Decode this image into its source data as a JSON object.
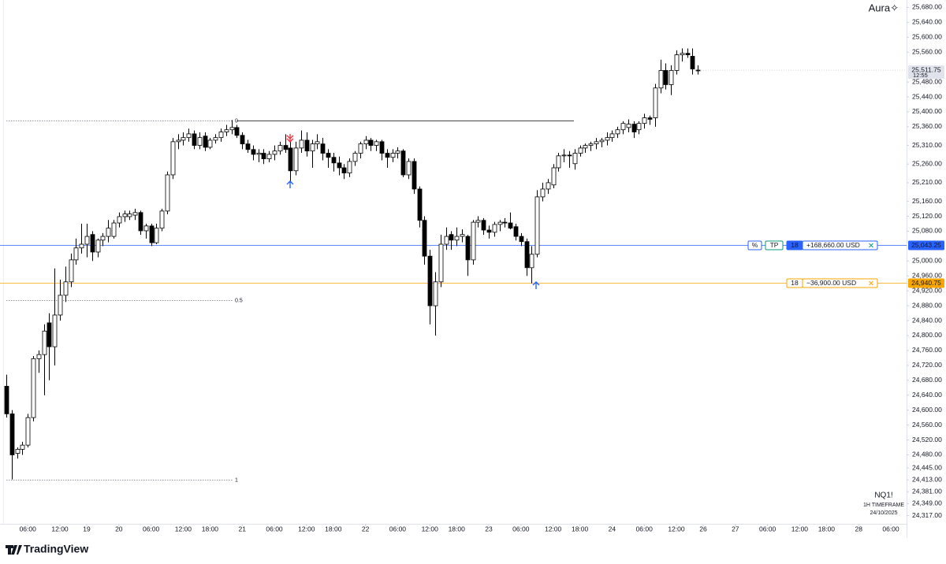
{
  "chart_data": {
    "type": "candlestick",
    "brand": "Aura✧",
    "symbol": "NQ1!",
    "timeframe": "1H TIMEFRAME",
    "date": "24/10/2025",
    "logo": "TradingView",
    "up_color": "#ffffff",
    "down_color": "#000000",
    "border_color": "#000000",
    "x": [
      0,
      1,
      2,
      3,
      4,
      5,
      6,
      7,
      8,
      9,
      10,
      11,
      12,
      13,
      14,
      15,
      16,
      17,
      18,
      19,
      20,
      21,
      22,
      23,
      24,
      25,
      26,
      27,
      28,
      29,
      30,
      31,
      32,
      33,
      34,
      35,
      36,
      37,
      38,
      39,
      40,
      41,
      42,
      43,
      44,
      45,
      46,
      47,
      48,
      49,
      50,
      51,
      52,
      53,
      54,
      55,
      56,
      57,
      58,
      59,
      60,
      61,
      62,
      63,
      64,
      65,
      66,
      67,
      68,
      69,
      70,
      71,
      72,
      73,
      74,
      75,
      76,
      77,
      78,
      79,
      80,
      81,
      82,
      83,
      84,
      85,
      86,
      87,
      88,
      89,
      90,
      91,
      92,
      93,
      94,
      95,
      96,
      97,
      98,
      99,
      100,
      101,
      102,
      103,
      104,
      105,
      106,
      107,
      108,
      109,
      110,
      111,
      112,
      113,
      114,
      115,
      116,
      117,
      118,
      119,
      120,
      121,
      122,
      123,
      124,
      125,
      126,
      127,
      128,
      129
    ],
    "open": [
      24664,
      24590,
      24484,
      24495,
      24506,
      24580,
      24738,
      24749,
      24834,
      24770,
      24855,
      24908,
      24944,
      25003,
      25035,
      25045,
      25071,
      25024,
      25056,
      25066,
      25066,
      25102,
      25119,
      25119,
      25123,
      25130,
      25081,
      25094,
      25049,
      25088,
      25134,
      25231,
      25320,
      25324,
      25331,
      25341,
      25310,
      25335,
      25305,
      25324,
      25331,
      25346,
      25352,
      25358,
      25337,
      25314,
      25299,
      25286,
      25289,
      25274,
      25286,
      25295,
      25310,
      25303,
      25242,
      25303,
      25324,
      25295,
      25314,
      25314,
      25289,
      25278,
      25263,
      25250,
      25236,
      25267,
      25289,
      25314,
      25324,
      25310,
      25320,
      25289,
      25278,
      25289,
      25295,
      25231,
      25267,
      25193,
      25109,
      25013,
      24880,
      24944,
      25045,
      25071,
      25056,
      25066,
      25066,
      25003,
      25104,
      25109,
      25083,
      25077,
      25098,
      25104,
      25102,
      25092,
      25066,
      25052,
      24982,
      25018,
      25172,
      25193,
      25204,
      25250,
      25282,
      25284,
      25261,
      25289,
      25303,
      25310,
      25314,
      25320,
      25324,
      25331,
      25341,
      25352,
      25358,
      25367,
      25352,
      25369,
      25384,
      25384,
      25464,
      25511,
      25473,
      25511,
      25553,
      25557,
      25549,
      25512
    ],
    "high": [
      24695,
      24600,
      24500,
      24515,
      24590,
      24745,
      24760,
      24830,
      24860,
      24980,
      24950,
      24985,
      25020,
      25060,
      25100,
      25100,
      25080,
      25060,
      25075,
      25110,
      25110,
      25130,
      25135,
      25135,
      25140,
      25135,
      25100,
      25100,
      25100,
      25140,
      25240,
      25330,
      25340,
      25345,
      25355,
      25350,
      25345,
      25345,
      25330,
      25340,
      25355,
      25365,
      25378,
      25365,
      25345,
      25325,
      25310,
      25300,
      25300,
      25295,
      25310,
      25320,
      25340,
      25320,
      25320,
      25350,
      25345,
      25325,
      25340,
      25330,
      25300,
      25290,
      25280,
      25260,
      25275,
      25295,
      25320,
      25335,
      25330,
      25325,
      25325,
      25300,
      25300,
      25305,
      25300,
      25275,
      25275,
      25200,
      25120,
      25030,
      24970,
      25070,
      25090,
      25080,
      25090,
      25085,
      25070,
      25110,
      25120,
      25115,
      25095,
      25105,
      25110,
      25115,
      25130,
      25100,
      25075,
      25060,
      25040,
      25190,
      25210,
      25220,
      25260,
      25290,
      25300,
      25295,
      25300,
      25310,
      25315,
      25320,
      25330,
      25330,
      25345,
      25350,
      25360,
      25375,
      25380,
      25375,
      25375,
      25395,
      25390,
      25475,
      25540,
      25530,
      25525,
      25565,
      25570,
      25570,
      25570,
      25525
    ],
    "low": [
      24580,
      24414,
      24470,
      24480,
      24500,
      24570,
      24700,
      24640,
      24680,
      24720,
      24840,
      24890,
      24930,
      24990,
      25020,
      25010,
      25000,
      25010,
      25040,
      25050,
      25060,
      25090,
      25105,
      25110,
      25110,
      25070,
      25060,
      25040,
      25045,
      25080,
      25125,
      25220,
      25300,
      25310,
      25320,
      25300,
      25300,
      25295,
      25300,
      25315,
      25320,
      25335,
      25340,
      25330,
      25300,
      25290,
      25270,
      25265,
      25260,
      25265,
      25270,
      25285,
      25290,
      25210,
      25230,
      25290,
      25280,
      25250,
      25300,
      25270,
      25250,
      25240,
      25230,
      25220,
      25225,
      25255,
      25275,
      25300,
      25295,
      25295,
      25270,
      25250,
      25265,
      25275,
      25225,
      25220,
      25180,
      25090,
      24990,
      24830,
      24800,
      24930,
      25030,
      25030,
      25040,
      25050,
      24960,
      24990,
      25090,
      25070,
      25060,
      25065,
      25080,
      25090,
      25085,
      25055,
      25040,
      24960,
      24940,
      25010,
      25160,
      25180,
      25195,
      25240,
      25265,
      25250,
      25245,
      25280,
      25290,
      25295,
      25300,
      25305,
      25310,
      25320,
      25330,
      25340,
      25345,
      25330,
      25340,
      25355,
      25365,
      25360,
      25450,
      25460,
      25445,
      25500,
      25535,
      25545,
      25500,
      25500
    ],
    "close": [
      24590,
      24480,
      24495,
      24506,
      24580,
      24738,
      24749,
      24812,
      24770,
      24855,
      24908,
      24944,
      25003,
      25035,
      25045,
      25066,
      25024,
      25056,
      25066,
      25088,
      25102,
      25119,
      25126,
      25126,
      25130,
      25081,
      25094,
      25049,
      25088,
      25134,
      25231,
      25320,
      25324,
      25331,
      25341,
      25310,
      25331,
      25305,
      25324,
      25331,
      25346,
      25352,
      25358,
      25337,
      25314,
      25299,
      25286,
      25289,
      25274,
      25286,
      25295,
      25310,
      25299,
      25242,
      25303,
      25324,
      25295,
      25314,
      25320,
      25289,
      25278,
      25263,
      25250,
      25236,
      25267,
      25289,
      25314,
      25324,
      25310,
      25320,
      25289,
      25278,
      25289,
      25295,
      25231,
      25267,
      25193,
      25109,
      25013,
      24880,
      24944,
      25045,
      25066,
      25056,
      25066,
      25071,
      25003,
      25104,
      25109,
      25083,
      25077,
      25098,
      25104,
      25102,
      25088,
      25066,
      25052,
      24982,
      25018,
      25172,
      25193,
      25210,
      25250,
      25282,
      25284,
      25282,
      25289,
      25303,
      25310,
      25314,
      25320,
      25324,
      25331,
      25341,
      25352,
      25369,
      25367,
      25346,
      25369,
      25384,
      25380,
      25464,
      25511,
      25473,
      25511,
      25553,
      25557,
      25553,
      25515,
      25511.75
    ],
    "xlim": [
      -1.18,
      167.94
    ],
    "ylim": [
      24295,
      25700
    ],
    "xticks": [
      {
        "value": 4,
        "label": "06:00"
      },
      {
        "value": 10,
        "label": "12:00"
      },
      {
        "value": 15,
        "label": "19"
      },
      {
        "value": 21,
        "label": "20"
      },
      {
        "value": 27,
        "label": "06:00"
      },
      {
        "value": 33,
        "label": "12:00"
      },
      {
        "value": 38,
        "label": "18:00"
      },
      {
        "value": 44,
        "label": "21"
      },
      {
        "value": 50,
        "label": "06:00"
      },
      {
        "value": 56,
        "label": "12:00"
      },
      {
        "value": 61,
        "label": "18:00"
      },
      {
        "value": 67,
        "label": "22"
      },
      {
        "value": 73,
        "label": "06:00"
      },
      {
        "value": 79,
        "label": "12:00"
      },
      {
        "value": 84,
        "label": "18:00"
      },
      {
        "value": 90,
        "label": "23"
      },
      {
        "value": 96,
        "label": "06:00"
      },
      {
        "value": 102,
        "label": "12:00"
      },
      {
        "value": 107,
        "label": "18:00"
      },
      {
        "value": 113,
        "label": "24"
      },
      {
        "value": 119,
        "label": "06:00"
      },
      {
        "value": 125,
        "label": "12:00"
      },
      {
        "value": 130,
        "label": "26"
      },
      {
        "value": 136,
        "label": "27"
      },
      {
        "value": 142,
        "label": "06:00"
      },
      {
        "value": 148,
        "label": "12:00"
      },
      {
        "value": 153,
        "label": "18:00"
      },
      {
        "value": 159,
        "label": "28"
      },
      {
        "value": 165,
        "label": "06:00"
      }
    ],
    "yticks": [
      {
        "value": 25680,
        "label": "25,680.00"
      },
      {
        "value": 25640,
        "label": "25,640.00"
      },
      {
        "value": 25600,
        "label": "25,600.00"
      },
      {
        "value": 25560,
        "label": "25,560.00"
      },
      {
        "value": 25480,
        "label": "25,480.00"
      },
      {
        "value": 25440,
        "label": "25,440.00"
      },
      {
        "value": 25400,
        "label": "25,400.00"
      },
      {
        "value": 25360,
        "label": "25,360.00"
      },
      {
        "value": 25310,
        "label": "25,310.00"
      },
      {
        "value": 25260,
        "label": "25,260.00"
      },
      {
        "value": 25210,
        "label": "25,210.00"
      },
      {
        "value": 25160,
        "label": "25,160.00"
      },
      {
        "value": 25120,
        "label": "25,120.00"
      },
      {
        "value": 25080,
        "label": "25,080.00"
      },
      {
        "value": 25000,
        "label": "25,000.00"
      },
      {
        "value": 24960,
        "label": "24,960.00"
      },
      {
        "value": 24920,
        "label": "24,920.00"
      },
      {
        "value": 24880,
        "label": "24,880.00"
      },
      {
        "value": 24840,
        "label": "24,840.00"
      },
      {
        "value": 24800,
        "label": "24,800.00"
      },
      {
        "value": 24760,
        "label": "24,760.00"
      },
      {
        "value": 24720,
        "label": "24,720.00"
      },
      {
        "value": 24680,
        "label": "24,680.00"
      },
      {
        "value": 24640,
        "label": "24,640.00"
      },
      {
        "value": 24600,
        "label": "24,600.00"
      },
      {
        "value": 24560,
        "label": "24,560.00"
      },
      {
        "value": 24520,
        "label": "24,520.00"
      },
      {
        "value": 24480,
        "label": "24,480.00"
      },
      {
        "value": 24445,
        "label": "24,445.00"
      },
      {
        "value": 24413,
        "label": "24,413.00"
      },
      {
        "value": 24381,
        "label": "24,381.00"
      },
      {
        "value": 24349,
        "label": "24,349.00"
      },
      {
        "value": 24317,
        "label": "24,317.00"
      }
    ],
    "last_price": {
      "value": 25511.75,
      "label": "25,511.75"
    },
    "countdown": "12:55",
    "fib_levels": [
      {
        "label": "0",
        "price": 25377
      },
      {
        "label": "0.5",
        "price": 24895
      },
      {
        "label": "1",
        "price": 24414
      }
    ],
    "orders": [
      {
        "price": {
          "value": 25043.25,
          "label": "25,043.25"
        },
        "color": "#2962ff",
        "pnl_color": "#089981",
        "tags": [
          "%",
          "TP"
        ],
        "qty": 18,
        "pnl": "+168,660.00 USD"
      },
      {
        "price": {
          "value": 24940.75,
          "label": "24,940.75"
        },
        "color": "#f7a600",
        "pnl_color": "#f7a600",
        "tags": [],
        "qty": 18,
        "pnl": "−36,900.00 USD"
      }
    ]
  }
}
